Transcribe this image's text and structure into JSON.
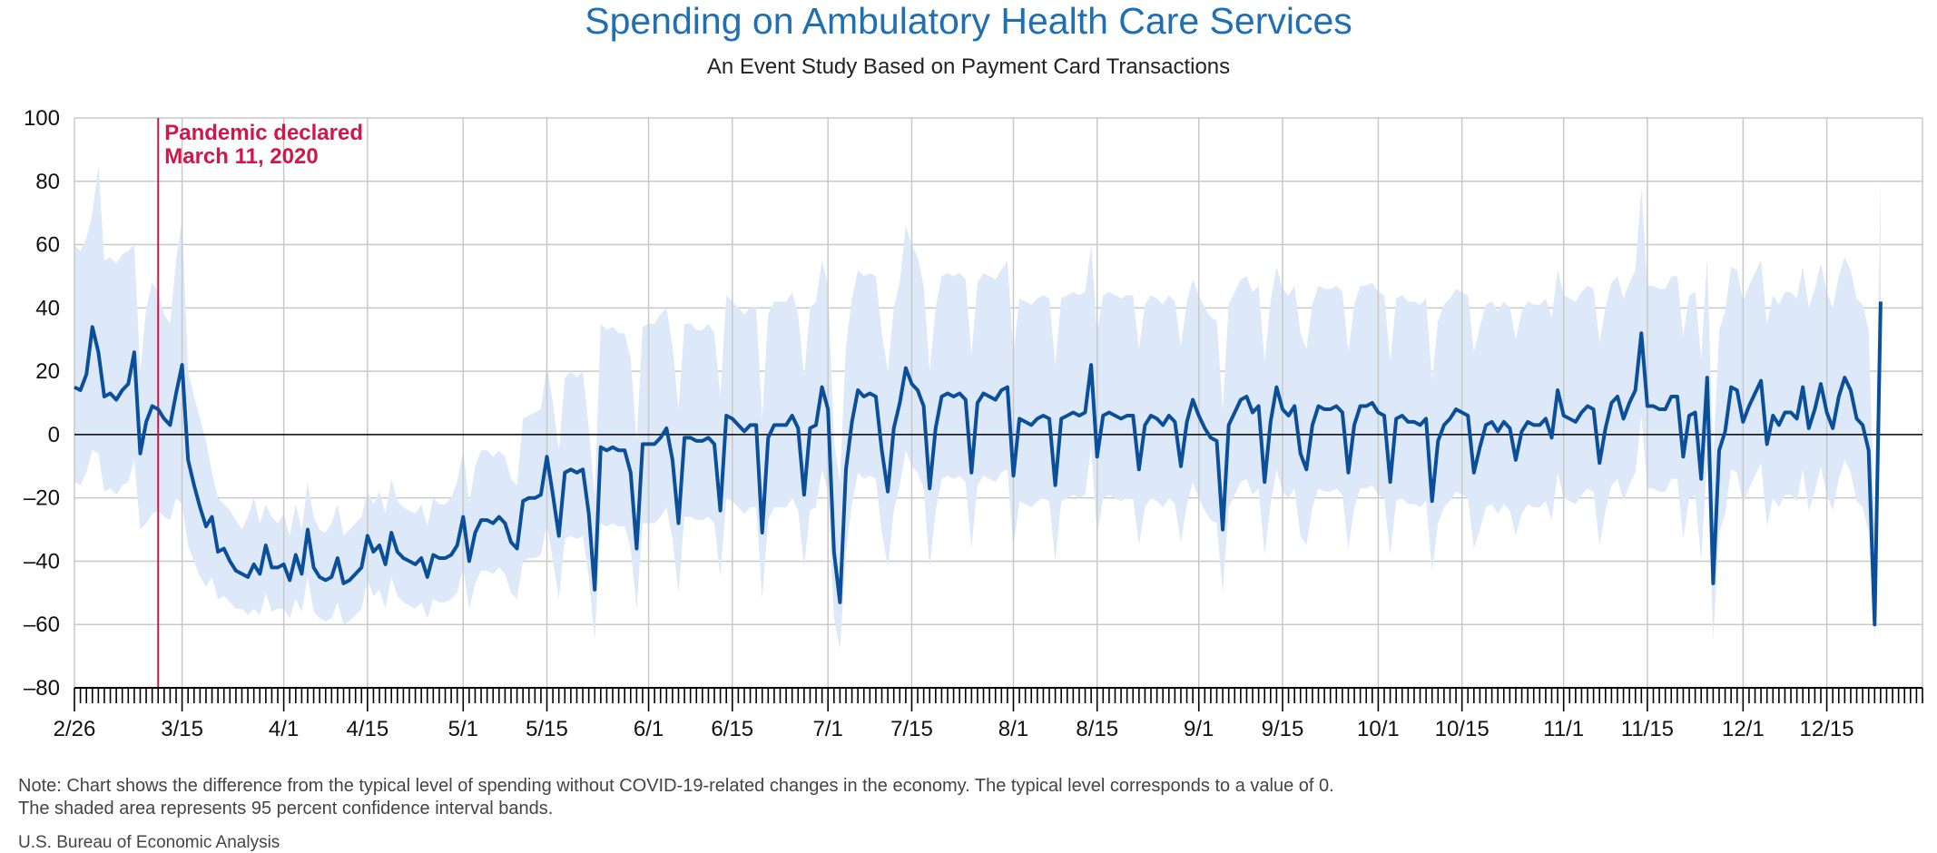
{
  "header": {
    "title": "Spending on Ambulatory Health Care Services",
    "subtitle": "An Event Study Based on Payment Card Transactions"
  },
  "footer": {
    "note_line1": "Note: Chart shows the difference from the typical level of spending without COVID-19-related changes in the economy. The typical level corresponds to a value of 0.",
    "note_line2": "The shaded area represents 95 percent confidence interval bands.",
    "source": "U.S. Bureau of Economic Analysis"
  },
  "colors": {
    "line": "#0b4f9a",
    "band": "#dde9f8",
    "annotation": "#d0174a",
    "title": "#1f6fb3",
    "grid": "#c8c8c8"
  },
  "chart_data": {
    "type": "line",
    "title": "Spending on Ambulatory Health Care Services",
    "subtitle": "An Event Study Based on Payment Card Transactions",
    "ylim": [
      -80,
      100
    ],
    "yticks": [
      100,
      80,
      60,
      40,
      20,
      0,
      -20,
      -40,
      -60,
      -80
    ],
    "x_start": "2020-02-26",
    "x_end": "2020-12-31",
    "xticks": [
      {
        "date": "2020-02-26",
        "label": "2/26"
      },
      {
        "date": "2020-03-15",
        "label": "3/15"
      },
      {
        "date": "2020-04-01",
        "label": "4/1"
      },
      {
        "date": "2020-04-15",
        "label": "4/15"
      },
      {
        "date": "2020-05-01",
        "label": "5/1"
      },
      {
        "date": "2020-05-15",
        "label": "5/15"
      },
      {
        "date": "2020-06-01",
        "label": "6/1"
      },
      {
        "date": "2020-06-15",
        "label": "6/15"
      },
      {
        "date": "2020-07-01",
        "label": "7/1"
      },
      {
        "date": "2020-07-15",
        "label": "7/15"
      },
      {
        "date": "2020-08-01",
        "label": "8/1"
      },
      {
        "date": "2020-08-15",
        "label": "8/15"
      },
      {
        "date": "2020-09-01",
        "label": "9/1"
      },
      {
        "date": "2020-09-15",
        "label": "9/15"
      },
      {
        "date": "2020-10-01",
        "label": "10/1"
      },
      {
        "date": "2020-10-15",
        "label": "10/15"
      },
      {
        "date": "2020-11-01",
        "label": "11/1"
      },
      {
        "date": "2020-11-15",
        "label": "11/15"
      },
      {
        "date": "2020-12-01",
        "label": "12/1"
      },
      {
        "date": "2020-12-15",
        "label": "12/15"
      }
    ],
    "grid": true,
    "annotation": {
      "date": "2020-03-11",
      "line1": "Pandemic declared",
      "line2": "March 11, 2020"
    },
    "series": [
      {
        "values": [
          15,
          14,
          19,
          34,
          26,
          12,
          13,
          11,
          14,
          16,
          26,
          -6,
          4,
          9,
          8,
          5,
          3,
          13,
          22,
          -8,
          -16,
          -23,
          -29,
          -26,
          -37,
          -36,
          -40,
          -43,
          -44,
          -45,
          -41,
          -44,
          -35,
          -42,
          -42,
          -41,
          -46,
          -38,
          -44,
          -30,
          -42,
          -45,
          -46,
          -45,
          -39,
          -47,
          -46,
          -44,
          -42,
          -32,
          -37,
          -35,
          -41,
          -31,
          -37,
          -39,
          -40,
          -41,
          -39,
          -45,
          -38,
          -39,
          -39,
          -38,
          -35,
          -26,
          -40,
          -31,
          -27,
          -27,
          -28,
          -26,
          -28,
          -34,
          -36,
          -21,
          -20,
          -20,
          -19,
          -7,
          -19,
          -32,
          -12,
          -11,
          -12,
          -11,
          -25,
          -49,
          -4,
          -5,
          -4,
          -5,
          -5,
          -12,
          -36,
          -3,
          -3,
          -3,
          -1,
          2,
          -8,
          -28,
          -1,
          -1,
          -2,
          -2,
          -1,
          -3,
          -24,
          6,
          5,
          3,
          1,
          3,
          3,
          -31,
          -1,
          3,
          3,
          3,
          6,
          2,
          -19,
          2,
          3,
          15,
          8,
          -37,
          -53,
          -11,
          4,
          14,
          12,
          13,
          12,
          -5,
          -18,
          2,
          10,
          21,
          16,
          14,
          9,
          -17,
          2,
          12,
          13,
          12,
          13,
          11,
          -12,
          10,
          13,
          12,
          11,
          14,
          15,
          -13,
          5,
          4,
          3,
          5,
          6,
          5,
          -16,
          5,
          6,
          7,
          6,
          7,
          22,
          -7,
          6,
          7,
          6,
          5,
          6,
          6,
          -11,
          3,
          6,
          5,
          3,
          6,
          4,
          -10,
          4,
          11,
          6,
          2,
          -1,
          -2,
          -30,
          3,
          7,
          11,
          12,
          7,
          9,
          -15,
          4,
          15,
          8,
          6,
          9,
          -6,
          -11,
          3,
          9,
          8,
          8,
          9,
          7,
          -12,
          3,
          9,
          9,
          10,
          7,
          6,
          -15,
          5,
          6,
          4,
          4,
          3,
          5,
          -21,
          -2,
          3,
          5,
          8,
          7,
          6,
          -12,
          -4,
          3,
          4,
          1,
          4,
          2,
          -8,
          1,
          4,
          3,
          3,
          5,
          -1,
          14,
          6,
          5,
          4,
          7,
          9,
          8,
          -9,
          2,
          10,
          12,
          5,
          10,
          14,
          32,
          9,
          9,
          8,
          8,
          12,
          12,
          -7,
          6,
          7,
          -14,
          18,
          -47,
          -5,
          1,
          15,
          14,
          4,
          9,
          13,
          17,
          -3,
          6,
          3,
          7,
          7,
          5,
          15,
          2,
          8,
          16,
          7,
          2,
          12,
          18,
          14,
          5,
          3,
          -5,
          -60,
          42
        ],
        "band_upper": [
          60,
          58,
          62,
          70,
          85,
          55,
          56,
          54,
          57,
          58,
          60,
          20,
          40,
          48,
          45,
          38,
          35,
          55,
          68,
          20,
          12,
          5,
          -2,
          -12,
          -20,
          -22,
          -24,
          -27,
          -30,
          -26,
          -20,
          -28,
          -22,
          -26,
          -28,
          -25,
          -32,
          -22,
          -30,
          -15,
          -26,
          -30,
          -31,
          -28,
          -22,
          -32,
          -30,
          -28,
          -26,
          -18,
          -22,
          -18,
          -25,
          -14,
          -21,
          -23,
          -24,
          -25,
          -22,
          -29,
          -20,
          -22,
          -22,
          -20,
          -15,
          -5,
          -22,
          -10,
          -5,
          -5,
          -7,
          -5,
          -7,
          -14,
          -16,
          5,
          6,
          7,
          8,
          22,
          10,
          -5,
          18,
          20,
          18,
          20,
          2,
          -20,
          35,
          33,
          34,
          32,
          32,
          24,
          -2,
          34,
          35,
          35,
          38,
          40,
          28,
          8,
          35,
          35,
          33,
          33,
          35,
          32,
          12,
          44,
          42,
          40,
          38,
          40,
          40,
          5,
          38,
          42,
          42,
          42,
          45,
          38,
          18,
          40,
          42,
          55,
          47,
          -2,
          -15,
          28,
          43,
          52,
          50,
          51,
          50,
          32,
          20,
          40,
          48,
          66,
          60,
          56,
          47,
          20,
          40,
          50,
          51,
          50,
          51,
          49,
          25,
          48,
          51,
          50,
          49,
          52,
          55,
          25,
          43,
          42,
          41,
          43,
          44,
          43,
          22,
          43,
          44,
          45,
          44,
          45,
          60,
          32,
          44,
          45,
          44,
          43,
          44,
          44,
          27,
          41,
          44,
          43,
          41,
          44,
          42,
          28,
          42,
          49,
          44,
          40,
          37,
          36,
          8,
          41,
          45,
          49,
          50,
          45,
          47,
          23,
          42,
          53,
          46,
          44,
          47,
          32,
          27,
          41,
          47,
          46,
          46,
          47,
          45,
          26,
          41,
          47,
          47,
          48,
          45,
          44,
          23,
          43,
          44,
          42,
          42,
          41,
          43,
          17,
          36,
          41,
          43,
          46,
          45,
          44,
          26,
          34,
          41,
          42,
          39,
          42,
          40,
          30,
          39,
          42,
          41,
          41,
          43,
          37,
          52,
          44,
          43,
          42,
          45,
          47,
          46,
          29,
          40,
          48,
          50,
          43,
          48,
          52,
          78,
          47,
          47,
          46,
          46,
          50,
          50,
          31,
          44,
          45,
          24,
          56,
          -9,
          33,
          39,
          53,
          52,
          42,
          47,
          51,
          55,
          35,
          44,
          41,
          45,
          45,
          43,
          53,
          40,
          46,
          54,
          45,
          40,
          50,
          56,
          52,
          43,
          41,
          33,
          -30,
          82
        ],
        "band_lower": [
          -15,
          -16,
          -12,
          -5,
          -6,
          -18,
          -17,
          -19,
          -16,
          -15,
          -8,
          -30,
          -28,
          -25,
          -24,
          -26,
          -27,
          -20,
          -22,
          -35,
          -40,
          -45,
          -48,
          -45,
          -52,
          -51,
          -53,
          -55,
          -55,
          -57,
          -55,
          -57,
          -50,
          -56,
          -55,
          -55,
          -58,
          -52,
          -56,
          -45,
          -56,
          -58,
          -59,
          -58,
          -53,
          -60,
          -59,
          -57,
          -55,
          -46,
          -51,
          -49,
          -55,
          -45,
          -51,
          -53,
          -54,
          -55,
          -53,
          -58,
          -52,
          -53,
          -53,
          -52,
          -50,
          -42,
          -55,
          -47,
          -43,
          -43,
          -44,
          -42,
          -44,
          -50,
          -52,
          -40,
          -39,
          -39,
          -38,
          -28,
          -40,
          -52,
          -33,
          -32,
          -33,
          -32,
          -45,
          -65,
          -28,
          -29,
          -28,
          -29,
          -29,
          -36,
          -55,
          -28,
          -28,
          -28,
          -26,
          -23,
          -33,
          -50,
          -26,
          -26,
          -27,
          -27,
          -26,
          -28,
          -45,
          -20,
          -21,
          -23,
          -25,
          -23,
          -23,
          -52,
          -27,
          -23,
          -23,
          -23,
          -20,
          -24,
          -42,
          -24,
          -23,
          -11,
          -18,
          -58,
          -68,
          -37,
          -22,
          -12,
          -14,
          -13,
          -14,
          -31,
          -42,
          -24,
          -16,
          -5,
          -10,
          -12,
          -17,
          -42,
          -24,
          -14,
          -13,
          -14,
          -13,
          -15,
          -36,
          -16,
          -13,
          -14,
          -15,
          -12,
          -11,
          -36,
          -21,
          -22,
          -23,
          -21,
          -20,
          -21,
          -40,
          -21,
          -20,
          -19,
          -20,
          -19,
          -4,
          -32,
          -20,
          -19,
          -20,
          -21,
          -20,
          -20,
          -35,
          -23,
          -20,
          -21,
          -23,
          -20,
          -22,
          -34,
          -22,
          -15,
          -20,
          -24,
          -27,
          -28,
          -50,
          -23,
          -19,
          -15,
          -14,
          -19,
          -17,
          -38,
          -22,
          -11,
          -18,
          -20,
          -17,
          -32,
          -35,
          -23,
          -17,
          -18,
          -18,
          -17,
          -19,
          -36,
          -23,
          -17,
          -17,
          -16,
          -19,
          -20,
          -38,
          -21,
          -20,
          -22,
          -22,
          -23,
          -21,
          -43,
          -28,
          -23,
          -21,
          -18,
          -19,
          -20,
          -36,
          -30,
          -23,
          -22,
          -25,
          -22,
          -24,
          -32,
          -25,
          -22,
          -23,
          -23,
          -21,
          -27,
          -12,
          -20,
          -21,
          -22,
          -19,
          -17,
          -18,
          -35,
          -24,
          -16,
          -14,
          -21,
          -16,
          -12,
          6,
          -17,
          -17,
          -18,
          -18,
          -14,
          -14,
          -33,
          -20,
          -19,
          -40,
          -8,
          -65,
          -31,
          -25,
          -11,
          -12,
          -22,
          -17,
          -13,
          -9,
          -29,
          -20,
          -23,
          -19,
          -19,
          -21,
          -11,
          -24,
          -18,
          -10,
          -19,
          -24,
          -14,
          -8,
          -12,
          -21,
          -23,
          -31,
          -65,
          2
        ]
      }
    ]
  }
}
